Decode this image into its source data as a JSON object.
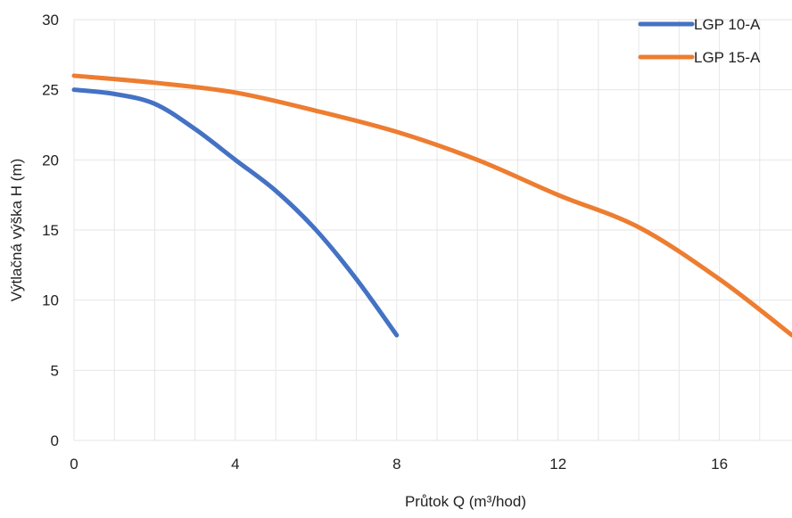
{
  "chart_data": {
    "type": "line",
    "title": "",
    "xlabel": "Průtok Q (m³/hod)",
    "ylabel": "Výtlačná výška H (m)",
    "xlim": [
      0,
      17.8
    ],
    "ylim": [
      0,
      30
    ],
    "x_ticks": [
      0,
      4,
      8,
      12,
      16
    ],
    "y_ticks": [
      0,
      5,
      10,
      15,
      20,
      25,
      30
    ],
    "grid": true,
    "legend_position": "top-right",
    "series": [
      {
        "name": "LGP 10-A",
        "color": "#4472C4",
        "x": [
          0,
          1,
          2,
          3,
          4,
          5,
          6,
          7,
          8
        ],
        "y": [
          25,
          24.7,
          24,
          22.2,
          20,
          17.8,
          15,
          11.5,
          7.5
        ]
      },
      {
        "name": "LGP 15-A",
        "color": "#ED7D31",
        "x": [
          0,
          2,
          4,
          6,
          8,
          10,
          12,
          14,
          16,
          17.8
        ],
        "y": [
          26,
          25.5,
          24.8,
          23.5,
          22,
          20,
          17.5,
          15.2,
          11.5,
          7.5
        ]
      }
    ]
  }
}
